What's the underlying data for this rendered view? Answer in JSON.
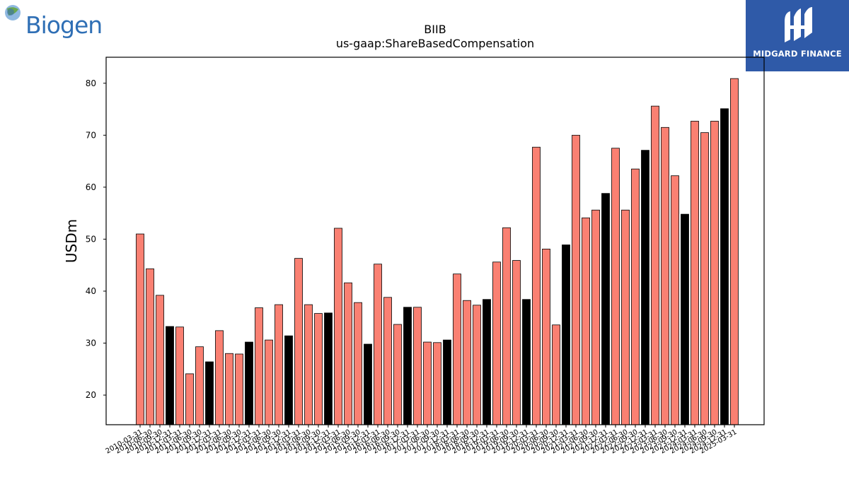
{
  "logos": {
    "left": {
      "text": "Biogen",
      "name": "biogen-logo"
    },
    "right": {
      "text": "MIDGARD FINANCE",
      "name": "midgard-finance-logo",
      "color": "#2f5aa8"
    }
  },
  "colors": {
    "bar_default": "#fa8072",
    "bar_highlight": "#000000",
    "edge": "#000000"
  },
  "chart_data": {
    "type": "bar",
    "title": "BIIB",
    "subtitle": "us-gaap:ShareBasedCompensation",
    "xlabel": "",
    "ylabel": "USDm",
    "ylim": [
      14.3,
      85
    ],
    "yticks": [
      20,
      30,
      40,
      50,
      60,
      70,
      80
    ],
    "grid": false,
    "categories": [
      "2010-03-31",
      "2010-06-30",
      "2010-09-30",
      "2010-12-31",
      "2011-03-31",
      "2011-06-30",
      "2011-09-30",
      "2011-12-31",
      "2012-03-31",
      "2012-06-30",
      "2012-09-30",
      "2012-12-31",
      "2013-03-31",
      "2013-06-30",
      "2013-09-30",
      "2013-12-31",
      "2014-03-31",
      "2014-06-30",
      "2014-09-30",
      "2014-12-31",
      "2015-03-31",
      "2015-06-30",
      "2015-09-30",
      "2015-12-31",
      "2016-03-31",
      "2016-06-30",
      "2016-09-30",
      "2016-12-31",
      "2017-03-31",
      "2017-06-30",
      "2017-09-30",
      "2017-12-31",
      "2018-03-31",
      "2018-06-30",
      "2018-09-30",
      "2018-12-31",
      "2019-03-31",
      "2019-06-30",
      "2019-09-30",
      "2019-12-31",
      "2020-03-31",
      "2020-06-30",
      "2020-09-30",
      "2020-12-31",
      "2021-03-31",
      "2021-06-30",
      "2021-09-30",
      "2021-12-31",
      "2022-03-31",
      "2022-06-30",
      "2022-09-30",
      "2022-12-31",
      "2023-03-31",
      "2023-06-30",
      "2023-09-30",
      "2023-12-31",
      "2024-03-31",
      "2024-06-30",
      "2024-09-30",
      "2024-12-31",
      "2025-03-31"
    ],
    "values": [
      51.0,
      44.3,
      39.2,
      33.2,
      33.1,
      24.1,
      29.3,
      26.4,
      32.4,
      28.0,
      27.9,
      30.2,
      36.8,
      30.6,
      37.4,
      31.4,
      46.3,
      37.4,
      35.7,
      35.8,
      52.1,
      41.6,
      37.8,
      29.8,
      45.2,
      38.8,
      33.6,
      36.9,
      36.9,
      30.2,
      30.1,
      30.6,
      43.3,
      38.2,
      37.3,
      38.4,
      45.6,
      52.2,
      45.9,
      38.4,
      67.7,
      48.1,
      33.5,
      48.9,
      70.0,
      54.1,
      55.6,
      58.8,
      67.5,
      55.6,
      63.5,
      67.1,
      75.6,
      71.5,
      62.2,
      54.8,
      72.7,
      70.5,
      72.7,
      75.1,
      80.9
    ],
    "highlight_indices": [
      3,
      7,
      11,
      15,
      19,
      23,
      27,
      31,
      35,
      39,
      43,
      47,
      51,
      55,
      59
    ]
  }
}
